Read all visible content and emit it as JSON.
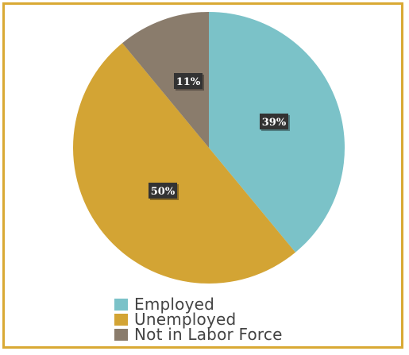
{
  "chart_data": {
    "type": "pie",
    "slices": [
      {
        "label": "Employed",
        "value": 39,
        "display": "39%",
        "color": "#7bc2c8"
      },
      {
        "label": "Unemployed",
        "value": 50,
        "display": "50%",
        "color": "#d3a434"
      },
      {
        "label": "Not in Labor Force",
        "value": 11,
        "display": "11%",
        "color": "#8a7c6c"
      }
    ],
    "start_angle_deg": 0,
    "direction": "clockwise",
    "legend_placement": "bottom",
    "data_label_style": "dark box, white bold text"
  },
  "colors": {
    "frame_border": "#d9a934",
    "label_box": "#333333",
    "label_text": "#ffffff",
    "legend_text": "#444444"
  }
}
